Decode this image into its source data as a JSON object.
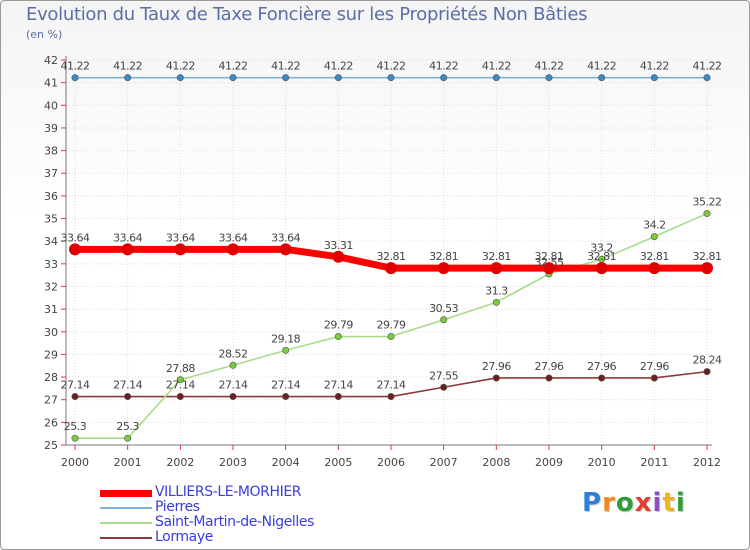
{
  "header": {
    "title": "Evolution du Taux de Taxe Foncière sur les Propriétés Non Bâties",
    "unit": "(en %)"
  },
  "brand": {
    "letters": [
      "P",
      "r",
      "o",
      "x",
      "i",
      "t",
      "i"
    ],
    "colors": [
      "#2e7fd6",
      "#f08a1c",
      "#2e9e3a",
      "#e33b2e",
      "#8a4fc7",
      "#f0b21c",
      "#2e9e3a"
    ]
  },
  "chart_data": {
    "type": "line",
    "title": "Evolution du Taux de Taxe Foncière sur les Propriétés Non Bâties",
    "ylabel": "(en %)",
    "xlabel": "",
    "ylim": [
      25,
      42
    ],
    "yticks": [
      "25",
      "26",
      "27",
      "28",
      "29",
      "30",
      "31",
      "32",
      "33",
      "34",
      "35",
      "36",
      "37",
      "38",
      "39",
      "40",
      "41",
      "42"
    ],
    "categories": [
      "2000",
      "2001",
      "2002",
      "2003",
      "2004",
      "2005",
      "2006",
      "2007",
      "2008",
      "2009",
      "2010",
      "2011",
      "2012"
    ],
    "series": [
      {
        "name": "VILLIERS-LE-MORHIER",
        "color": "#ff0000",
        "marker": "#e00000",
        "values": [
          33.64,
          33.64,
          33.64,
          33.64,
          33.64,
          33.31,
          32.81,
          32.81,
          32.81,
          32.81,
          32.81,
          32.81,
          32.81
        ],
        "labels": [
          "33.64",
          "33.64",
          "33.64",
          "33.64",
          "33.64",
          "33.31",
          "32.81",
          "32.81",
          "32.81",
          "32.81",
          "32.81",
          "32.81",
          "32.81"
        ]
      },
      {
        "name": "Pierres",
        "color": "#7fb2d8",
        "marker": "#3a8ac8",
        "values": [
          41.22,
          41.22,
          41.22,
          41.22,
          41.22,
          41.22,
          41.22,
          41.22,
          41.22,
          41.22,
          41.22,
          41.22,
          41.22
        ],
        "labels": [
          "41.22",
          "41.22",
          "41.22",
          "41.22",
          "41.22",
          "41.22",
          "41.22",
          "41.22",
          "41.22",
          "41.22",
          "41.22",
          "41.22",
          "41.22"
        ]
      },
      {
        "name": "Saint-Martin-de-Nigelles",
        "color": "#a8dc8c",
        "marker": "#7acc3a",
        "values": [
          25.3,
          25.3,
          27.88,
          28.52,
          29.18,
          29.79,
          29.79,
          30.53,
          31.3,
          32.55,
          33.2,
          34.2,
          35.22
        ],
        "labels": [
          "25.3",
          "25.3",
          "27.88",
          "28.52",
          "29.18",
          "29.79",
          "29.79",
          "30.53",
          "31.3",
          "32.55",
          "33.2",
          "34.2",
          "35.22"
        ]
      },
      {
        "name": "Lormaye",
        "color": "#8a3a3a",
        "marker": "#6b1f1f",
        "values": [
          27.14,
          27.14,
          27.14,
          27.14,
          27.14,
          27.14,
          27.14,
          27.55,
          27.96,
          27.96,
          27.96,
          27.96,
          28.24
        ],
        "labels": [
          "27.14",
          "27.14",
          "27.14",
          "27.14",
          "27.14",
          "27.14",
          "27.14",
          "27.55",
          "27.96",
          "27.96",
          "27.96",
          "27.96",
          "28.24"
        ]
      }
    ],
    "legend_position": "bottom-left"
  }
}
